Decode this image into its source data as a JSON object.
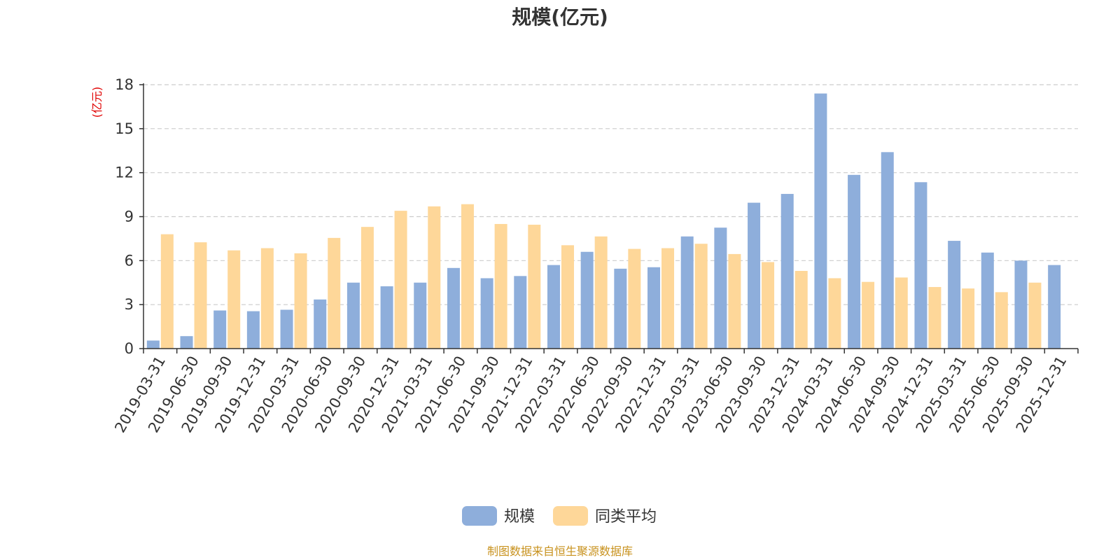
{
  "chart_data": {
    "type": "bar",
    "title": "规模(亿元)",
    "ylabel": "(亿元)",
    "xlabel": "",
    "ylim": [
      0,
      18
    ],
    "yticks": [
      0,
      3,
      6,
      9,
      12,
      15,
      18
    ],
    "grid": true,
    "legend_position": "bottom",
    "categories": [
      "2019-03-31",
      "2019-06-30",
      "2019-09-30",
      "2019-12-31",
      "2020-03-31",
      "2020-06-30",
      "2020-09-30",
      "2020-12-31",
      "2021-03-31",
      "2021-06-30",
      "2021-09-30",
      "2021-12-31",
      "2022-03-31",
      "2022-06-30",
      "2022-09-30",
      "2022-12-31",
      "2023-03-31",
      "2023-06-30",
      "2023-09-30",
      "2023-12-31",
      "2024-03-31",
      "2024-06-30",
      "2024-09-30",
      "2024-12-31",
      "2025-03-31",
      "2025-06-30",
      "2025-09-30",
      "2025-12-31"
    ],
    "series": [
      {
        "name": "规模",
        "color": "#8eaedb",
        "values": [
          0.55,
          0.85,
          2.6,
          2.55,
          2.65,
          3.35,
          4.5,
          4.25,
          4.5,
          5.5,
          4.8,
          4.95,
          5.7,
          6.6,
          5.45,
          5.55,
          7.65,
          8.25,
          9.95,
          10.55,
          17.4,
          11.85,
          13.4,
          11.35,
          7.35,
          6.55,
          6.0,
          5.7
        ]
      },
      {
        "name": "同类平均",
        "color": "#fed799",
        "values": [
          7.8,
          7.25,
          6.7,
          6.85,
          6.5,
          7.55,
          8.3,
          9.4,
          9.7,
          9.85,
          8.5,
          8.45,
          7.05,
          7.65,
          6.8,
          6.85,
          7.15,
          6.45,
          5.9,
          5.3,
          4.8,
          4.55,
          4.85,
          4.2,
          4.1,
          3.85,
          4.5,
          null
        ]
      }
    ]
  },
  "footer": {
    "source": "制图数据来自恒生聚源数据库"
  }
}
